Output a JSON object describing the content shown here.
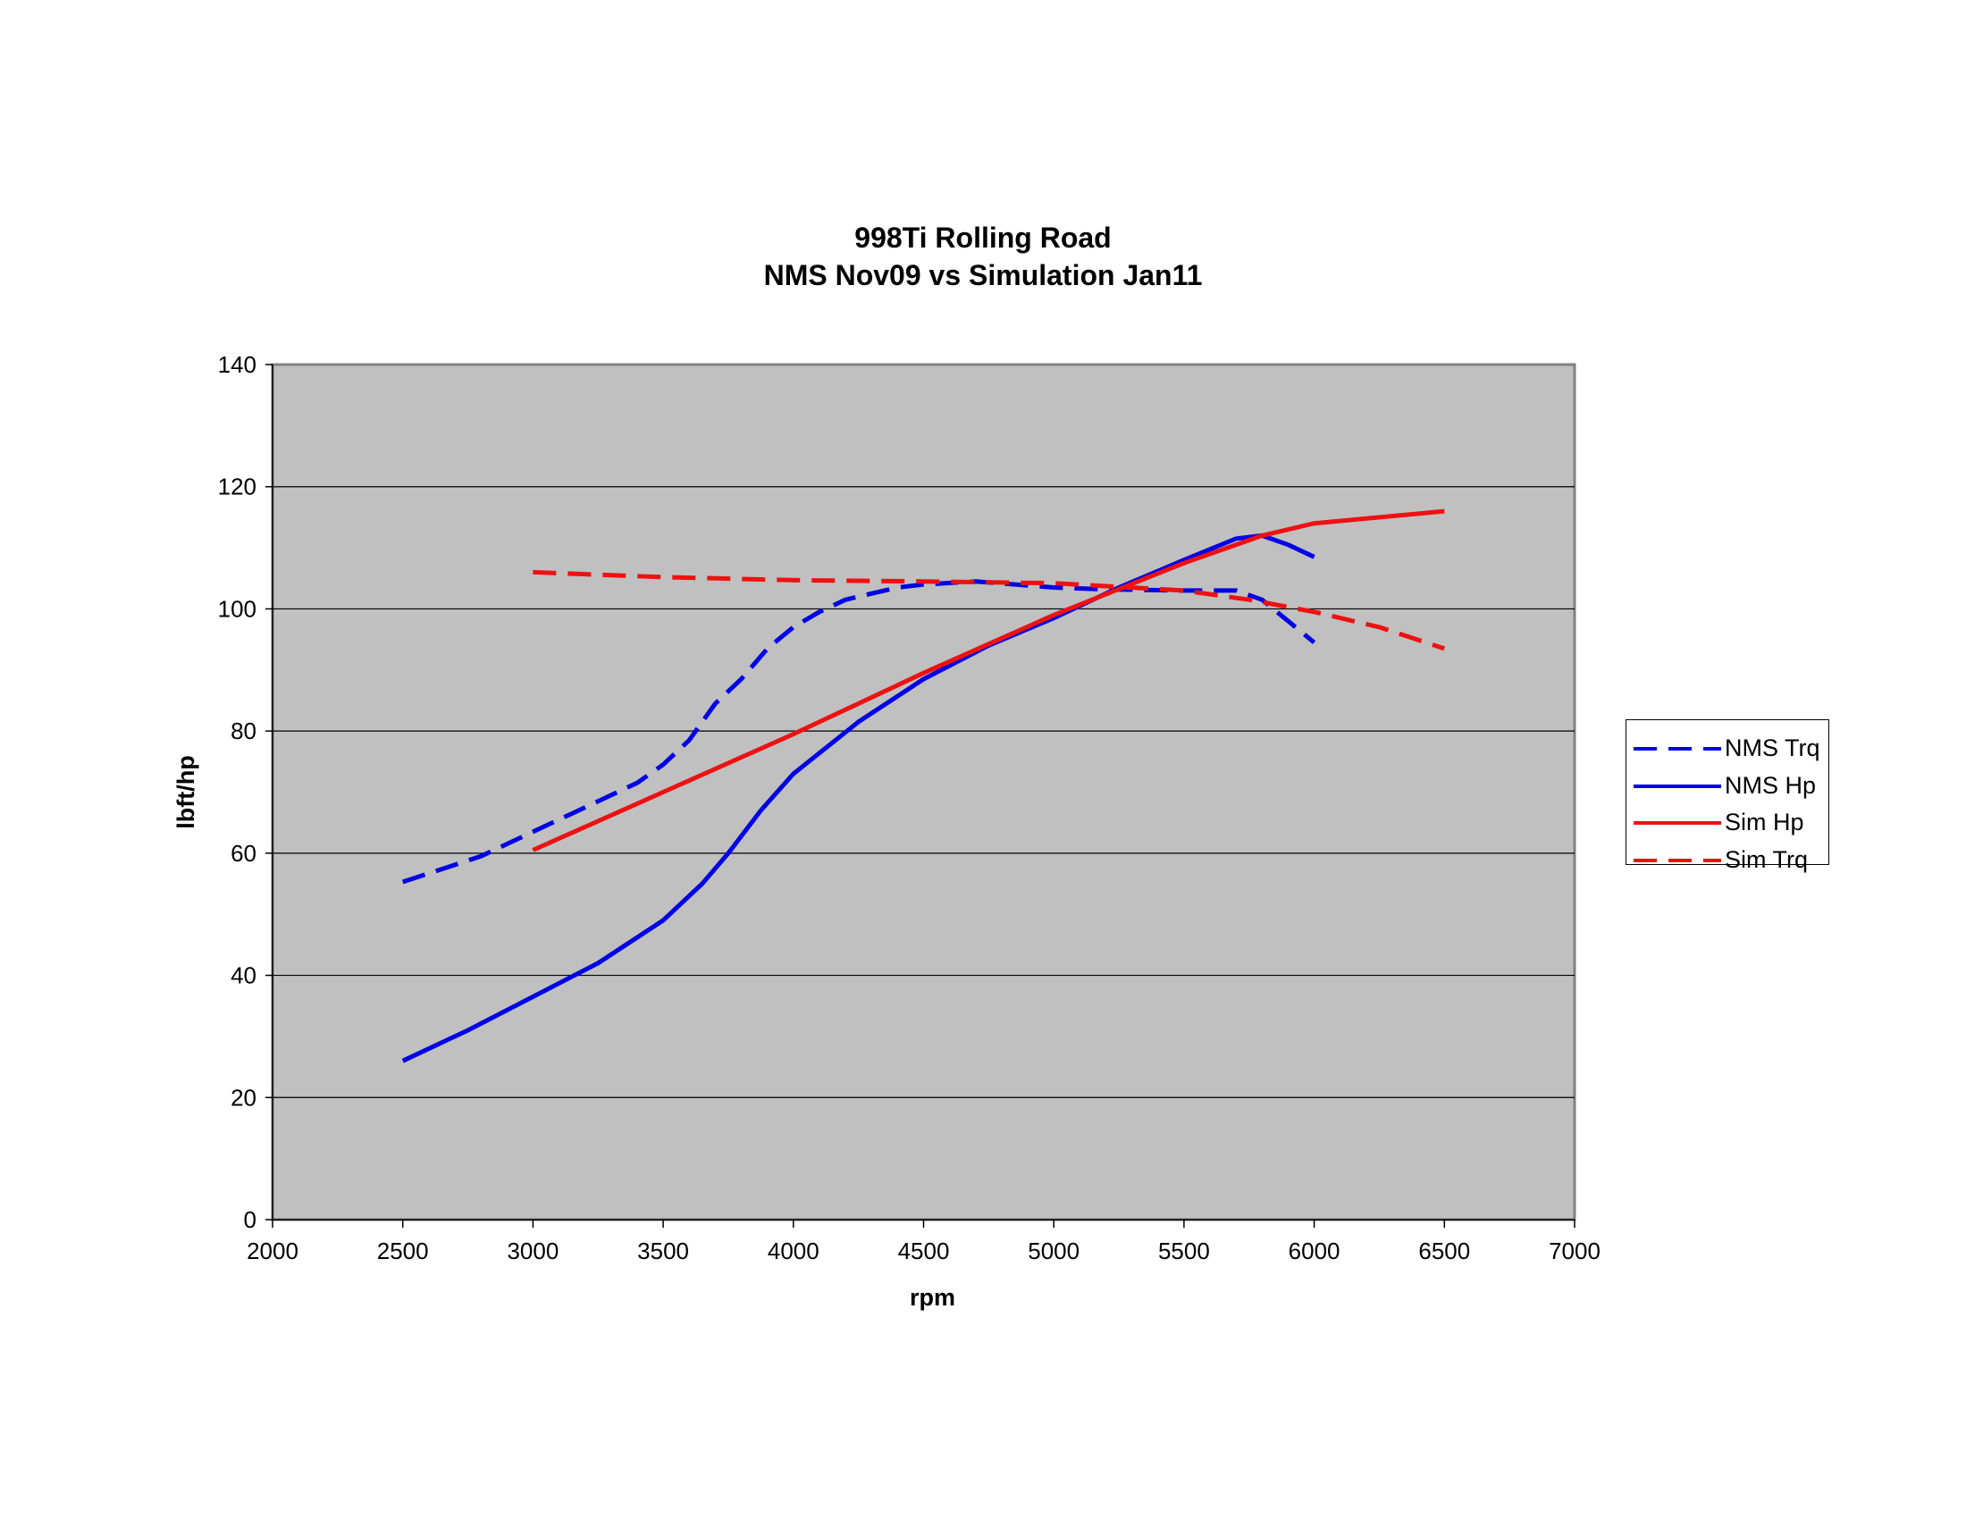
{
  "chart_data": {
    "type": "line",
    "title": [
      "998Ti Rolling Road",
      "NMS Nov09 vs Simulation Jan11"
    ],
    "xlabel": "rpm",
    "ylabel": "lbft/hp",
    "xlim": [
      2000,
      7000
    ],
    "ylim": [
      0,
      140
    ],
    "x_ticks": [
      "2000",
      "2500",
      "3000",
      "3500",
      "4000",
      "4500",
      "5000",
      "5500",
      "6000",
      "6500",
      "7000"
    ],
    "y_ticks": [
      "0",
      "20",
      "40",
      "60",
      "80",
      "100",
      "120",
      "140"
    ],
    "grid": "horizontal",
    "plot_background": "#c0c0c0",
    "legend_position": "right",
    "series": [
      {
        "name": "NMS Trq",
        "color": "#0000e6",
        "dash": "dashed",
        "points": [
          [
            2500,
            55.3
          ],
          [
            2800,
            59.5
          ],
          [
            3000,
            63.5
          ],
          [
            3200,
            67.5
          ],
          [
            3400,
            71.5
          ],
          [
            3500,
            74.5
          ],
          [
            3600,
            78.5
          ],
          [
            3700,
            84.5
          ],
          [
            3800,
            88.5
          ],
          [
            3900,
            93.5
          ],
          [
            4000,
            97
          ],
          [
            4100,
            99.5
          ],
          [
            4200,
            101.5
          ],
          [
            4300,
            102.5
          ],
          [
            4400,
            103.5
          ],
          [
            4500,
            104
          ],
          [
            4700,
            104.5
          ],
          [
            5000,
            103.5
          ],
          [
            5200,
            103.2
          ],
          [
            5500,
            103
          ],
          [
            5700,
            103
          ],
          [
            5800,
            101.5
          ],
          [
            5900,
            98
          ],
          [
            6000,
            94.5
          ]
        ]
      },
      {
        "name": "NMS Hp",
        "color": "#0000e6",
        "dash": "solid",
        "points": [
          [
            2500,
            26
          ],
          [
            2750,
            31
          ],
          [
            3000,
            36.5
          ],
          [
            3250,
            42
          ],
          [
            3500,
            49
          ],
          [
            3650,
            55
          ],
          [
            3750,
            60
          ],
          [
            3875,
            67
          ],
          [
            4000,
            73
          ],
          [
            4250,
            81.5
          ],
          [
            4500,
            88.5
          ],
          [
            4750,
            94
          ],
          [
            5000,
            98.5
          ],
          [
            5250,
            103.5
          ],
          [
            5500,
            108
          ],
          [
            5700,
            111.5
          ],
          [
            5800,
            112
          ],
          [
            5900,
            110.5
          ],
          [
            6000,
            108.5
          ]
        ]
      },
      {
        "name": "Sim Hp",
        "color": "#ee1111",
        "dash": "solid",
        "points": [
          [
            3000,
            60.5
          ],
          [
            3500,
            70
          ],
          [
            4000,
            79.5
          ],
          [
            4500,
            89.5
          ],
          [
            5000,
            99
          ],
          [
            5500,
            107.5
          ],
          [
            5800,
            112
          ],
          [
            6000,
            114
          ],
          [
            6500,
            116
          ]
        ]
      },
      {
        "name": "Sim Trq",
        "color": "#ee1111",
        "dash": "dashed",
        "points": [
          [
            3000,
            106
          ],
          [
            3500,
            105.2
          ],
          [
            4000,
            104.7
          ],
          [
            4500,
            104.5
          ],
          [
            5000,
            104.2
          ],
          [
            5500,
            103
          ],
          [
            5750,
            101.5
          ],
          [
            6000,
            99.5
          ],
          [
            6250,
            97
          ],
          [
            6500,
            93.5
          ]
        ]
      }
    ]
  }
}
